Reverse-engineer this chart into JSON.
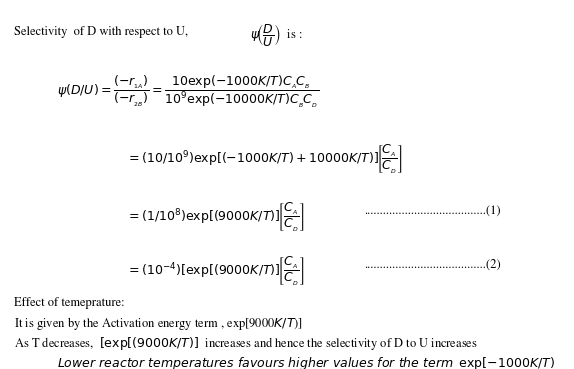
{
  "background_color": "#ffffff",
  "fig_width": 5.74,
  "fig_height": 3.69,
  "dpi": 100,
  "fontsize": 9.0,
  "math_fontset": "stix"
}
